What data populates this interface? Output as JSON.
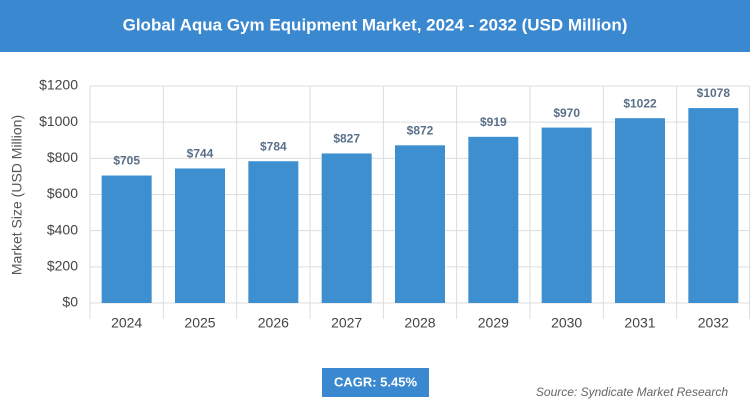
{
  "chart_data": {
    "type": "bar",
    "title": "Global Aqua Gym Equipment Market, 2024 - 2032 (USD Million)",
    "y_label": "Market Size (USD Million)",
    "categories": [
      "2024",
      "2025",
      "2026",
      "2027",
      "2028",
      "2029",
      "2030",
      "2031",
      "2032"
    ],
    "values": [
      705,
      744,
      784,
      827,
      872,
      919,
      970,
      1022,
      1078
    ],
    "value_labels": [
      "$705",
      "$744",
      "$784",
      "$827",
      "$872",
      "$919",
      "$970",
      "$1022",
      "$1078"
    ],
    "color": "#3d8fcf",
    "ylim": [
      0,
      1200
    ],
    "yticks": [
      {
        "value": 0,
        "label": "$0"
      },
      {
        "value": 200,
        "label": "$200"
      },
      {
        "value": 400,
        "label": "$400"
      },
      {
        "value": 600,
        "label": "$600"
      },
      {
        "value": 800,
        "label": "$800"
      },
      {
        "value": 1000,
        "label": "$1000"
      },
      {
        "value": 1200,
        "label": "$1200"
      }
    ],
    "grid": true,
    "cagr_label": "CAGR: 5.45%",
    "source": "Source: Syndicate Market Research"
  }
}
